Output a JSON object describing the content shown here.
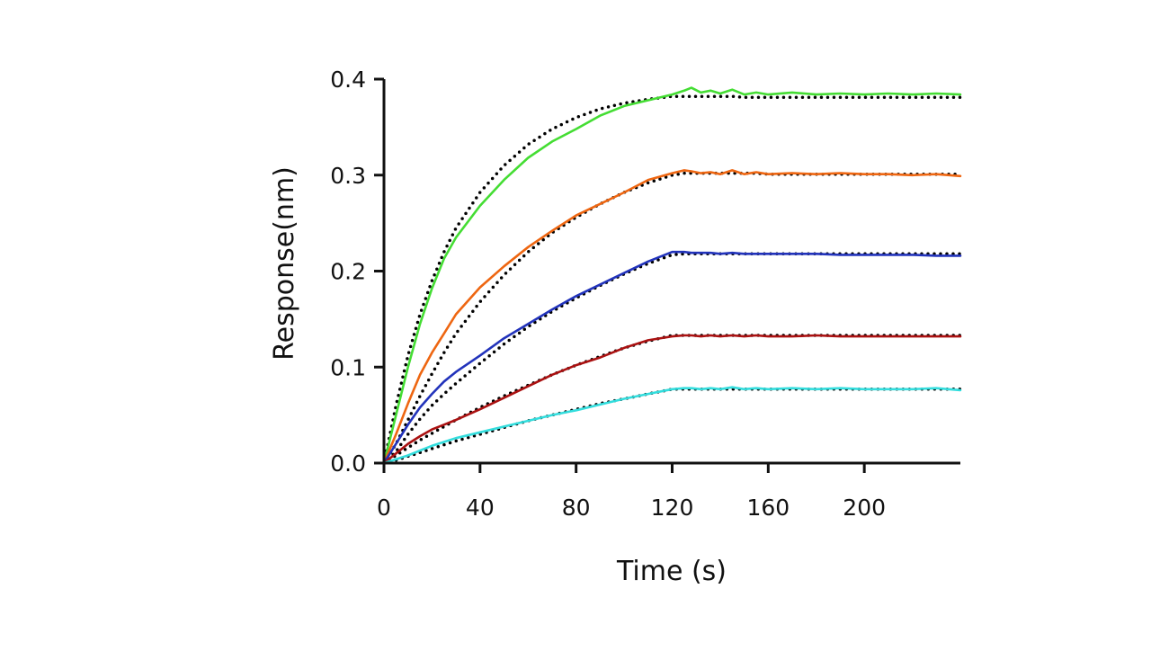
{
  "chart_data": {
    "type": "line",
    "xlabel": "Time (s)",
    "ylabel": "Response(nm)",
    "xlim": [
      0,
      240
    ],
    "ylim": [
      0,
      0.4
    ],
    "x_ticks": [
      0,
      40,
      80,
      120,
      160,
      200
    ],
    "x_tick_labels": [
      "0",
      "40",
      "80",
      "120",
      "160",
      "200"
    ],
    "y_ticks": [
      0,
      0.1,
      0.2,
      0.3,
      0.4
    ],
    "y_tick_labels": [
      "0.0",
      "0.1",
      "0.2",
      "0.3",
      "0.4"
    ],
    "grid": false,
    "legend": "none",
    "fit_color": "#000000",
    "fit_style": "dotted",
    "series": [
      {
        "color": "#44dd33",
        "x": [
          0,
          5,
          10,
          15,
          20,
          25,
          30,
          40,
          50,
          60,
          70,
          80,
          90,
          100,
          110,
          120,
          125,
          128,
          132,
          136,
          140,
          145,
          150,
          155,
          160,
          170,
          180,
          190,
          200,
          210,
          220,
          230,
          240
        ],
        "y": [
          0.0,
          0.05,
          0.1,
          0.145,
          0.182,
          0.213,
          0.235,
          0.268,
          0.295,
          0.318,
          0.335,
          0.348,
          0.362,
          0.372,
          0.378,
          0.384,
          0.388,
          0.391,
          0.386,
          0.388,
          0.385,
          0.389,
          0.384,
          0.386,
          0.384,
          0.386,
          0.384,
          0.385,
          0.384,
          0.385,
          0.384,
          0.385,
          0.384
        ],
        "fit_y": [
          0.0,
          0.06,
          0.112,
          0.155,
          0.19,
          0.22,
          0.245,
          0.282,
          0.31,
          0.332,
          0.348,
          0.36,
          0.369,
          0.375,
          0.379,
          0.382,
          0.382,
          0.382,
          0.382,
          0.382,
          0.382,
          0.382,
          0.381,
          0.381,
          0.381,
          0.381,
          0.381,
          0.381,
          0.381,
          0.381,
          0.381,
          0.381,
          0.381
        ]
      },
      {
        "color": "#ee6611",
        "x": [
          0,
          5,
          10,
          15,
          20,
          25,
          30,
          40,
          50,
          60,
          70,
          80,
          90,
          100,
          110,
          120,
          125,
          128,
          132,
          136,
          140,
          145,
          150,
          155,
          160,
          170,
          180,
          190,
          200,
          210,
          220,
          230,
          240
        ],
        "y": [
          0.0,
          0.03,
          0.062,
          0.092,
          0.115,
          0.135,
          0.155,
          0.183,
          0.205,
          0.225,
          0.242,
          0.258,
          0.27,
          0.282,
          0.295,
          0.302,
          0.305,
          0.304,
          0.302,
          0.303,
          0.301,
          0.305,
          0.301,
          0.303,
          0.301,
          0.302,
          0.301,
          0.302,
          0.301,
          0.301,
          0.3,
          0.301,
          0.299
        ],
        "fit_y": [
          0.0,
          0.02,
          0.045,
          0.07,
          0.093,
          0.115,
          0.135,
          0.168,
          0.196,
          0.22,
          0.24,
          0.256,
          0.27,
          0.282,
          0.292,
          0.3,
          0.302,
          0.302,
          0.302,
          0.302,
          0.302,
          0.302,
          0.302,
          0.302,
          0.301,
          0.301,
          0.301,
          0.301,
          0.301,
          0.301,
          0.301,
          0.301,
          0.301
        ]
      },
      {
        "color": "#2233bb",
        "x": [
          0,
          5,
          10,
          15,
          20,
          25,
          30,
          40,
          50,
          60,
          70,
          80,
          90,
          100,
          110,
          120,
          125,
          128,
          132,
          136,
          140,
          145,
          150,
          155,
          160,
          170,
          180,
          190,
          200,
          210,
          220,
          230,
          240
        ],
        "y": [
          0.0,
          0.02,
          0.04,
          0.058,
          0.072,
          0.085,
          0.095,
          0.112,
          0.13,
          0.145,
          0.16,
          0.174,
          0.186,
          0.198,
          0.21,
          0.22,
          0.22,
          0.219,
          0.219,
          0.219,
          0.218,
          0.219,
          0.218,
          0.218,
          0.218,
          0.218,
          0.218,
          0.217,
          0.217,
          0.217,
          0.217,
          0.216,
          0.216
        ],
        "fit_y": [
          0.0,
          0.012,
          0.03,
          0.046,
          0.06,
          0.072,
          0.083,
          0.104,
          0.124,
          0.142,
          0.158,
          0.172,
          0.185,
          0.197,
          0.208,
          0.217,
          0.218,
          0.218,
          0.218,
          0.218,
          0.218,
          0.218,
          0.218,
          0.218,
          0.218,
          0.218,
          0.218,
          0.218,
          0.218,
          0.218,
          0.218,
          0.218,
          0.218
        ]
      },
      {
        "color": "#aa1111",
        "x": [
          0,
          5,
          10,
          15,
          20,
          25,
          30,
          40,
          50,
          60,
          70,
          80,
          90,
          100,
          110,
          120,
          125,
          128,
          132,
          136,
          140,
          145,
          150,
          155,
          160,
          170,
          180,
          190,
          200,
          210,
          220,
          230,
          240
        ],
        "y": [
          0.0,
          0.01,
          0.02,
          0.028,
          0.035,
          0.04,
          0.045,
          0.056,
          0.068,
          0.08,
          0.092,
          0.102,
          0.11,
          0.12,
          0.128,
          0.132,
          0.133,
          0.133,
          0.132,
          0.133,
          0.132,
          0.133,
          0.132,
          0.133,
          0.132,
          0.132,
          0.133,
          0.132,
          0.132,
          0.132,
          0.132,
          0.132,
          0.132
        ],
        "fit_y": [
          0.0,
          0.008,
          0.016,
          0.024,
          0.031,
          0.038,
          0.045,
          0.058,
          0.07,
          0.081,
          0.092,
          0.102,
          0.111,
          0.12,
          0.127,
          0.133,
          0.133,
          0.133,
          0.133,
          0.133,
          0.133,
          0.133,
          0.133,
          0.133,
          0.133,
          0.133,
          0.133,
          0.133,
          0.133,
          0.133,
          0.133,
          0.133,
          0.133
        ]
      },
      {
        "color": "#33dddd",
        "x": [
          0,
          5,
          10,
          15,
          20,
          25,
          30,
          40,
          50,
          60,
          70,
          80,
          90,
          100,
          110,
          120,
          125,
          128,
          132,
          136,
          140,
          145,
          150,
          155,
          160,
          170,
          180,
          190,
          200,
          210,
          220,
          230,
          240
        ],
        "y": [
          0.0,
          0.004,
          0.008,
          0.013,
          0.018,
          0.022,
          0.026,
          0.032,
          0.038,
          0.044,
          0.05,
          0.055,
          0.061,
          0.067,
          0.072,
          0.077,
          0.078,
          0.078,
          0.077,
          0.078,
          0.077,
          0.079,
          0.077,
          0.078,
          0.077,
          0.078,
          0.077,
          0.078,
          0.077,
          0.077,
          0.077,
          0.078,
          0.076
        ],
        "fit_y": [
          0.0,
          0.003,
          0.007,
          0.011,
          0.015,
          0.019,
          0.023,
          0.03,
          0.037,
          0.044,
          0.05,
          0.056,
          0.062,
          0.067,
          0.072,
          0.077,
          0.077,
          0.077,
          0.077,
          0.077,
          0.077,
          0.077,
          0.077,
          0.077,
          0.077,
          0.077,
          0.077,
          0.077,
          0.077,
          0.077,
          0.077,
          0.077,
          0.077
        ]
      }
    ]
  }
}
